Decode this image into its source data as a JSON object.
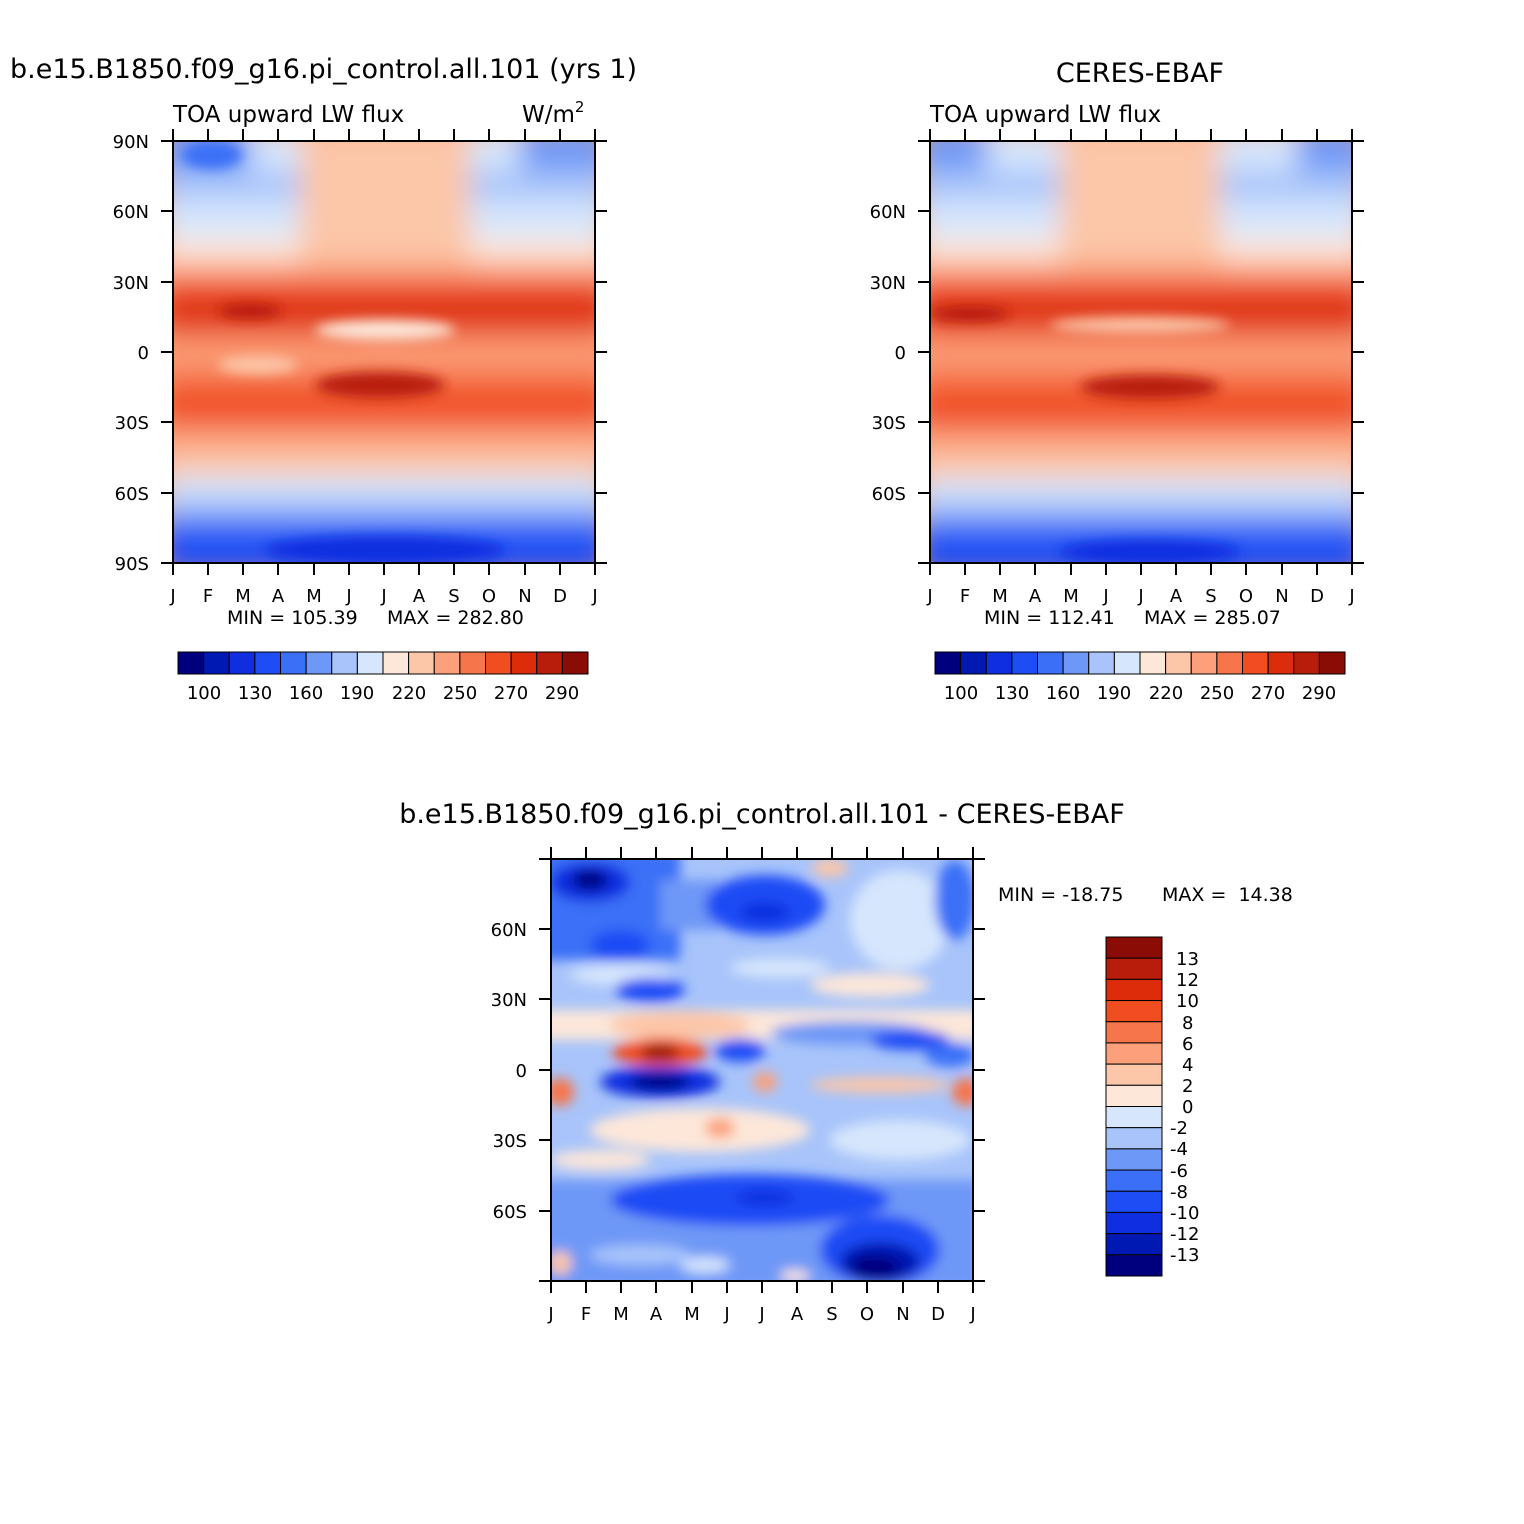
{
  "figure": {
    "model_title": "b.e15.B1850.f09_g16.pi_control.all.101 (yrs 1)",
    "obs_title": "CERES-EBAF",
    "diff_title": "b.e15.B1850.f09_g16.pi_control.all.101 - CERES-EBAF"
  },
  "chart_data": [
    {
      "id": "model",
      "type": "heatmap",
      "title": "b.e15.B1850.f09_g16.pi_control.all.101 (yrs 1)",
      "subtitle": "TOA upward LW flux",
      "units": "W/m",
      "units_exponent": "2",
      "x_ticks": [
        "J",
        "F",
        "M",
        "A",
        "M",
        "J",
        "J",
        "A",
        "S",
        "O",
        "N",
        "D",
        "J"
      ],
      "y_ticks": [
        "90N",
        "60N",
        "30N",
        "0",
        "30S",
        "60S",
        "90S"
      ],
      "y_range": [
        -90,
        90
      ],
      "min_label": "MIN = 105.39",
      "max_label": "MAX = 282.80",
      "min": 105.39,
      "max": 282.8,
      "colorbar_labels": [
        "100",
        "130",
        "160",
        "190",
        "220",
        "250",
        "270",
        "290"
      ]
    },
    {
      "id": "obs",
      "type": "heatmap",
      "title": "CERES-EBAF",
      "subtitle": "TOA upward LW flux",
      "x_ticks": [
        "J",
        "F",
        "M",
        "A",
        "M",
        "J",
        "J",
        "A",
        "S",
        "O",
        "N",
        "D",
        "J"
      ],
      "y_ticks": [
        "60N",
        "30N",
        "0",
        "30S",
        "60S"
      ],
      "y_range": [
        -90,
        90
      ],
      "min_label": "MIN = 112.41",
      "max_label": "MAX = 285.07",
      "min": 112.41,
      "max": 285.07,
      "colorbar_labels": [
        "100",
        "130",
        "160",
        "190",
        "220",
        "250",
        "270",
        "290"
      ]
    },
    {
      "id": "diff",
      "type": "heatmap",
      "title": "b.e15.B1850.f09_g16.pi_control.all.101 - CERES-EBAF",
      "x_ticks": [
        "J",
        "F",
        "M",
        "A",
        "M",
        "J",
        "J",
        "A",
        "S",
        "O",
        "N",
        "D",
        "J"
      ],
      "y_ticks": [
        "60N",
        "30N",
        "0",
        "30S",
        "60S"
      ],
      "y_range": [
        -90,
        90
      ],
      "min_label": "MIN = -18.75",
      "max_label": "MAX =  14.38",
      "min": -18.75,
      "max": 14.38,
      "colorbar_labels": [
        "13",
        "12",
        "10",
        "8",
        "6",
        "4",
        "2",
        "0",
        "-2",
        "-4",
        "-6",
        "-8",
        "-10",
        "-12",
        "-13"
      ]
    }
  ],
  "colors": {
    "flux_palette": [
      "#00007f",
      "#0019b2",
      "#0f2ee0",
      "#1e4cf5",
      "#3b6ff7",
      "#6e98f7",
      "#a8c4fa",
      "#d6e6fc",
      "#fde7d9",
      "#fcc6a8",
      "#fba07a",
      "#f7754a",
      "#f04e20",
      "#dc2c0a",
      "#b81d0c",
      "#8a0c05"
    ],
    "diff_palette": [
      "#8a0c05",
      "#b81d0c",
      "#dc2c0a",
      "#f04e20",
      "#f7754a",
      "#fba07a",
      "#fcc6a8",
      "#fde7d9",
      "#d6e6fc",
      "#a8c4fa",
      "#6e98f7",
      "#3b6ff7",
      "#1e4cf5",
      "#0f2ee0",
      "#0019b2",
      "#00007f"
    ]
  }
}
